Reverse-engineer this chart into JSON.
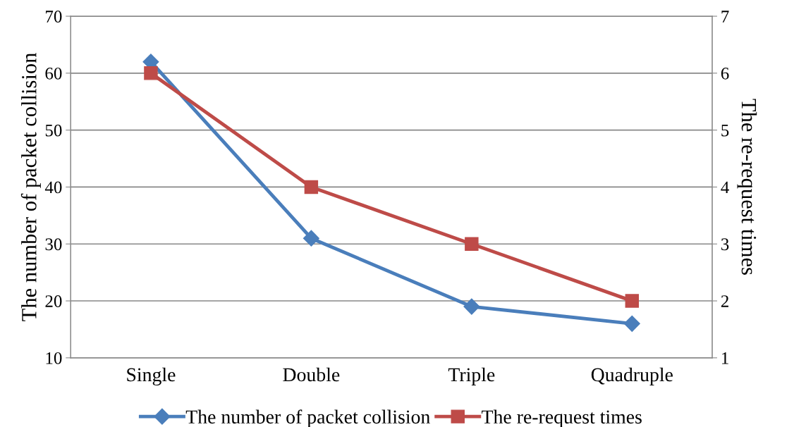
{
  "chart_data": {
    "type": "line",
    "categories": [
      "Single",
      "Double",
      "Triple",
      "Quadruple"
    ],
    "ylabel": "The number of packet collision",
    "y2label": "The re-request times",
    "series": [
      {
        "name": "The number of packet collision",
        "color": "#4a7ebb",
        "marker": "diamond",
        "values": [
          62,
          31,
          19,
          16
        ]
      },
      {
        "name": "The re-request times",
        "color": "#be4b48",
        "marker": "square",
        "axis": "y2",
        "values": [
          6,
          4,
          3,
          2
        ]
      }
    ],
    "ylim": [
      10,
      70
    ],
    "yticks": [
      10,
      20,
      30,
      40,
      50,
      60,
      70
    ],
    "y2lim": [
      1,
      7
    ],
    "y2ticks": [
      1,
      2,
      3,
      4,
      5,
      6,
      7
    ],
    "grid": "y",
    "legend": "bottom",
    "line_style": "solid"
  }
}
